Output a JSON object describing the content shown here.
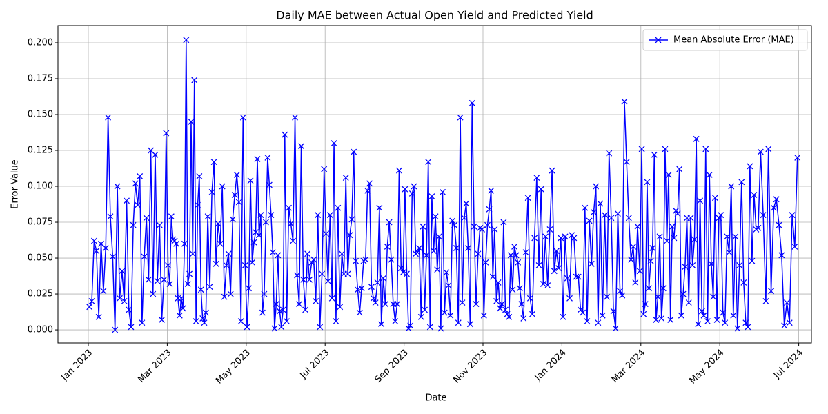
{
  "chart_data": {
    "type": "line",
    "title": "Daily MAE between Actual Open Yield and Predicted Yield",
    "x_label": "Date",
    "y_label": "Error Value",
    "ylim": [
      -0.0091,
      0.212
    ],
    "yticks": [
      {
        "value": 0,
        "label": "0.000"
      },
      {
        "value": 0.025,
        "label": "0.025"
      },
      {
        "value": 0.05,
        "label": "0.050"
      },
      {
        "value": 0.075,
        "label": "0.075"
      },
      {
        "value": 0.1,
        "label": "0.100"
      },
      {
        "value": 0.125,
        "label": "0.125"
      },
      {
        "value": 0.15,
        "label": "0.150"
      },
      {
        "value": 0.175,
        "label": "0.175"
      },
      {
        "value": 0.2,
        "label": "0.200"
      }
    ],
    "xticks": [
      {
        "value": "2023-01",
        "label": "Jan 2023"
      },
      {
        "value": "2023-03",
        "label": "Mar 2023"
      },
      {
        "value": "2023-05",
        "label": "May 2023"
      },
      {
        "value": "2023-07",
        "label": "Jul 2023"
      },
      {
        "value": "2023-09",
        "label": "Sep 2023"
      },
      {
        "value": "2023-11",
        "label": "Nov 2023"
      },
      {
        "value": "2024-01",
        "label": "Jan 2024"
      },
      {
        "value": "2024-03",
        "label": "Mar 2024"
      },
      {
        "value": "2024-05",
        "label": "May 2024"
      },
      {
        "value": "2024-07",
        "label": "Jul 2024"
      }
    ],
    "grid": true,
    "legend": "upper right",
    "x": [
      "2023-01",
      "2023-01",
      "2023-01",
      "2023-01",
      "2023-01",
      "2023-01",
      "2023-01",
      "2023-01",
      "2023-01",
      "2023-01",
      "2023-01",
      "2023-01",
      "2023-01",
      "2023-01",
      "2023-01",
      "2023-01",
      "2023-01",
      "2023-02",
      "2023-02",
      "2023-02",
      "2023-02",
      "2023-02",
      "2023-02",
      "2023-02",
      "2023-02",
      "2023-02",
      "2023-02",
      "2023-02",
      "2023-02",
      "2023-02",
      "2023-02",
      "2023-02",
      "2023-02",
      "2023-02",
      "2023-02",
      "2023-03",
      "2023-03",
      "2023-03",
      "2023-03",
      "2023-03",
      "2023-03",
      "2023-03",
      "2023-03",
      "2023-03",
      "2023-03",
      "2023-03",
      "2023-03",
      "2023-03",
      "2023-03",
      "2023-03",
      "2023-03",
      "2023-03",
      "2023-03",
      "2023-03",
      "2023-03",
      "2023-03",
      "2023-03",
      "2023-03",
      "2023-03",
      "2023-04",
      "2023-04",
      "2023-04",
      "2023-04",
      "2023-04",
      "2023-04",
      "2023-04",
      "2023-04",
      "2023-04",
      "2023-04",
      "2023-04",
      "2023-04",
      "2023-04",
      "2023-04",
      "2023-04",
      "2023-04",
      "2023-04",
      "2023-04",
      "2023-04",
      "2023-05",
      "2023-05",
      "2023-05",
      "2023-05",
      "2023-05",
      "2023-05",
      "2023-05",
      "2023-05",
      "2023-05",
      "2023-05",
      "2023-05",
      "2023-05",
      "2023-05",
      "2023-05",
      "2023-05",
      "2023-05",
      "2023-05",
      "2023-05",
      "2023-05",
      "2023-05",
      "2023-05",
      "2023-05",
      "2023-05",
      "2023-06",
      "2023-06",
      "2023-06",
      "2023-06",
      "2023-06",
      "2023-06",
      "2023-06",
      "2023-06",
      "2023-06",
      "2023-06",
      "2023-06",
      "2023-06",
      "2023-06",
      "2023-06",
      "2023-06",
      "2023-06",
      "2023-06",
      "2023-06",
      "2023-06",
      "2023-07",
      "2023-07",
      "2023-07",
      "2023-07",
      "2023-07",
      "2023-07",
      "2023-07",
      "2023-07",
      "2023-07",
      "2023-07",
      "2023-07",
      "2023-07",
      "2023-07",
      "2023-07",
      "2023-07",
      "2023-07",
      "2023-07",
      "2023-07",
      "2023-07",
      "2023-07",
      "2023-08",
      "2023-08",
      "2023-08",
      "2023-08",
      "2023-08",
      "2023-08",
      "2023-08",
      "2023-08",
      "2023-08",
      "2023-08",
      "2023-08",
      "2023-08",
      "2023-08",
      "2023-08",
      "2023-08",
      "2023-08",
      "2023-08",
      "2023-08",
      "2023-08",
      "2023-08",
      "2023-09",
      "2023-09",
      "2023-09",
      "2023-09",
      "2023-09",
      "2023-09",
      "2023-09",
      "2023-09",
      "2023-09",
      "2023-09",
      "2023-09",
      "2023-09",
      "2023-09",
      "2023-09",
      "2023-09",
      "2023-09",
      "2023-09",
      "2023-09",
      "2023-09",
      "2023-09",
      "2023-09",
      "2023-09",
      "2023-10",
      "2023-10",
      "2023-10",
      "2023-10",
      "2023-10",
      "2023-10",
      "2023-10",
      "2023-10",
      "2023-10",
      "2023-10",
      "2023-10",
      "2023-10",
      "2023-10",
      "2023-10",
      "2023-10",
      "2023-10",
      "2023-10",
      "2023-10",
      "2023-10",
      "2023-10",
      "2023-11",
      "2023-11",
      "2023-11",
      "2023-11",
      "2023-11",
      "2023-11",
      "2023-11",
      "2023-11",
      "2023-11",
      "2023-11",
      "2023-11",
      "2023-11",
      "2023-11",
      "2023-11",
      "2023-11",
      "2023-11",
      "2023-11",
      "2023-11",
      "2023-11",
      "2023-11",
      "2023-11",
      "2023-11",
      "2023-12",
      "2023-12",
      "2023-12",
      "2023-12",
      "2023-12",
      "2023-12",
      "2023-12",
      "2023-12",
      "2023-12",
      "2023-12",
      "2023-12",
      "2023-12",
      "2023-12",
      "2023-12",
      "2023-12",
      "2023-12",
      "2023-12",
      "2023-12",
      "2024-01",
      "2024-01",
      "2024-01",
      "2024-01",
      "2024-01",
      "2024-01",
      "2024-01",
      "2024-01",
      "2024-01",
      "2024-01",
      "2024-01",
      "2024-01",
      "2024-01",
      "2024-01",
      "2024-01",
      "2024-01",
      "2024-01",
      "2024-01",
      "2024-02",
      "2024-02",
      "2024-02",
      "2024-02",
      "2024-02",
      "2024-02",
      "2024-02",
      "2024-02",
      "2024-02",
      "2024-02",
      "2024-02",
      "2024-02",
      "2024-02",
      "2024-02",
      "2024-02",
      "2024-02",
      "2024-02",
      "2024-02",
      "2024-03",
      "2024-03",
      "2024-03",
      "2024-03",
      "2024-03",
      "2024-03",
      "2024-03",
      "2024-03",
      "2024-03",
      "2024-03",
      "2024-03",
      "2024-03",
      "2024-03",
      "2024-03",
      "2024-03",
      "2024-03",
      "2024-03",
      "2024-03",
      "2024-03",
      "2024-03",
      "2024-03",
      "2024-03",
      "2024-04",
      "2024-04",
      "2024-04",
      "2024-04",
      "2024-04",
      "2024-04",
      "2024-04",
      "2024-04",
      "2024-04",
      "2024-04",
      "2024-04",
      "2024-04",
      "2024-04",
      "2024-04",
      "2024-04",
      "2024-04",
      "2024-04",
      "2024-04",
      "2024-04",
      "2024-04",
      "2024-04",
      "2024-05",
      "2024-05",
      "2024-05",
      "2024-05",
      "2024-05",
      "2024-05",
      "2024-05",
      "2024-05",
      "2024-05",
      "2024-05",
      "2024-05",
      "2024-05",
      "2024-05",
      "2024-05",
      "2024-05",
      "2024-05",
      "2024-05",
      "2024-05",
      "2024-05",
      "2024-06",
      "2024-06",
      "2024-06",
      "2024-06",
      "2024-06",
      "2024-06",
      "2024-06",
      "2024-06",
      "2024-06",
      "2024-06",
      "2024-06",
      "2024-06",
      "2024-06",
      "2024-06",
      "2024-06"
    ],
    "series": [
      {
        "name": "Mean Absolute Error (MAE)",
        "color": "#0000ff",
        "marker": "x",
        "values": [
          0.016,
          0.02,
          0.062,
          0.055,
          0.009,
          0.06,
          0.027,
          0.057,
          0.148,
          0.079,
          0.051,
          0.0,
          0.1,
          0.022,
          0.041,
          0.02,
          0.09,
          0.014,
          0.002,
          0.073,
          0.102,
          0.087,
          0.107,
          0.005,
          0.051,
          0.078,
          0.035,
          0.125,
          0.025,
          0.122,
          0.034,
          0.073,
          0.007,
          0.035,
          0.137,
          0.045,
          0.032,
          0.079,
          0.063,
          0.062,
          0.06,
          0.022,
          0.01,
          0.022,
          0.015,
          0.06,
          0.202,
          0.032,
          0.039,
          0.145,
          0.053,
          0.174,
          0.006,
          0.087,
          0.107,
          0.028,
          0.008,
          0.005,
          0.012,
          0.079,
          0.03,
          0.096,
          0.117,
          0.046,
          0.074,
          0.06,
          0.1,
          0.023,
          0.045,
          0.053,
          0.025,
          0.077,
          0.094,
          0.108,
          0.089,
          0.006,
          0.148,
          0.045,
          0.002,
          0.029,
          0.104,
          0.047,
          0.061,
          0.068,
          0.119,
          0.066,
          0.08,
          0.012,
          0.025,
          0.075,
          0.12,
          0.101,
          0.08,
          0.054,
          0.001,
          0.018,
          0.052,
          0.013,
          0.002,
          0.014,
          0.136,
          0.006,
          0.085,
          0.074,
          0.062,
          0.148,
          0.038,
          0.018,
          0.128,
          0.035,
          0.014,
          0.053,
          0.035,
          0.047,
          0.049,
          0.02,
          0.08,
          0.002,
          0.039,
          0.112,
          0.067,
          0.034,
          0.08,
          0.022,
          0.13,
          0.006,
          0.085,
          0.016,
          0.053,
          0.039,
          0.106,
          0.039,
          0.066,
          0.077,
          0.124,
          0.048,
          0.028,
          0.012,
          0.029,
          0.048,
          0.049,
          0.097,
          0.102,
          0.03,
          0.022,
          0.019,
          0.033,
          0.085,
          0.004,
          0.036,
          0.018,
          0.058,
          0.075,
          0.049,
          0.018,
          0.006,
          0.018,
          0.111,
          0.043,
          0.04,
          0.098,
          0.039,
          0.001,
          0.003,
          0.095,
          0.1,
          0.053,
          0.054,
          0.057,
          0.009,
          0.072,
          0.014,
          0.052,
          0.117,
          0.002,
          0.093,
          0.055,
          0.079,
          0.042,
          0.065,
          0.001,
          0.096,
          0.012,
          0.04,
          0.031,
          0.01,
          0.076,
          0.073,
          0.057,
          0.005,
          0.148,
          0.019,
          0.078,
          0.088,
          0.057,
          0.004,
          0.158,
          0.072,
          0.018,
          0.053,
          0.071,
          0.07,
          0.01,
          0.047,
          0.073,
          0.084,
          0.097,
          0.037,
          0.07,
          0.02,
          0.033,
          0.015,
          0.018,
          0.075,
          0.014,
          0.011,
          0.009,
          0.052,
          0.028,
          0.058,
          0.052,
          0.047,
          0.029,
          0.018,
          0.008,
          0.054,
          0.092,
          0.022,
          0.011,
          0.064,
          0.106,
          0.045,
          0.098,
          0.032,
          0.065,
          0.031,
          0.07,
          0.111,
          0.041,
          0.055,
          0.043,
          0.064,
          0.009,
          0.065,
          0.036,
          0.022,
          0.066,
          0.064,
          0.037,
          0.037,
          0.014,
          0.012,
          0.085,
          0.006,
          0.076,
          0.046,
          0.082,
          0.1,
          0.005,
          0.088,
          0.01,
          0.08,
          0.023,
          0.123,
          0.078,
          0.013,
          0.001,
          0.081,
          0.027,
          0.024,
          0.159,
          0.117,
          0.078,
          0.049,
          0.058,
          0.033,
          0.072,
          0.041,
          0.126,
          0.011,
          0.018,
          0.103,
          0.029,
          0.048,
          0.057,
          0.122,
          0.007,
          0.023,
          0.065,
          0.008,
          0.029,
          0.126,
          0.062,
          0.108,
          0.007,
          0.072,
          0.064,
          0.083,
          0.081,
          0.112,
          0.01,
          0.025,
          0.044,
          0.078,
          0.019,
          0.078,
          0.045,
          0.063,
          0.133,
          0.004,
          0.09,
          0.013,
          0.01,
          0.126,
          0.006,
          0.108,
          0.046,
          0.023,
          0.092,
          0.007,
          0.078,
          0.08,
          0.012,
          0.005,
          0.065,
          0.054,
          0.1,
          0.01,
          0.065,
          0.001,
          0.045,
          0.103,
          0.033,
          0.005,
          0.002,
          0.114,
          0.048,
          0.094,
          0.07,
          0.071,
          0.124,
          0.08,
          0.02,
          0.126,
          0.027,
          0.085,
          0.091,
          0.073,
          0.052,
          0.003,
          0.019,
          0.005,
          0.08,
          0.058,
          0.12
        ]
      }
    ]
  }
}
